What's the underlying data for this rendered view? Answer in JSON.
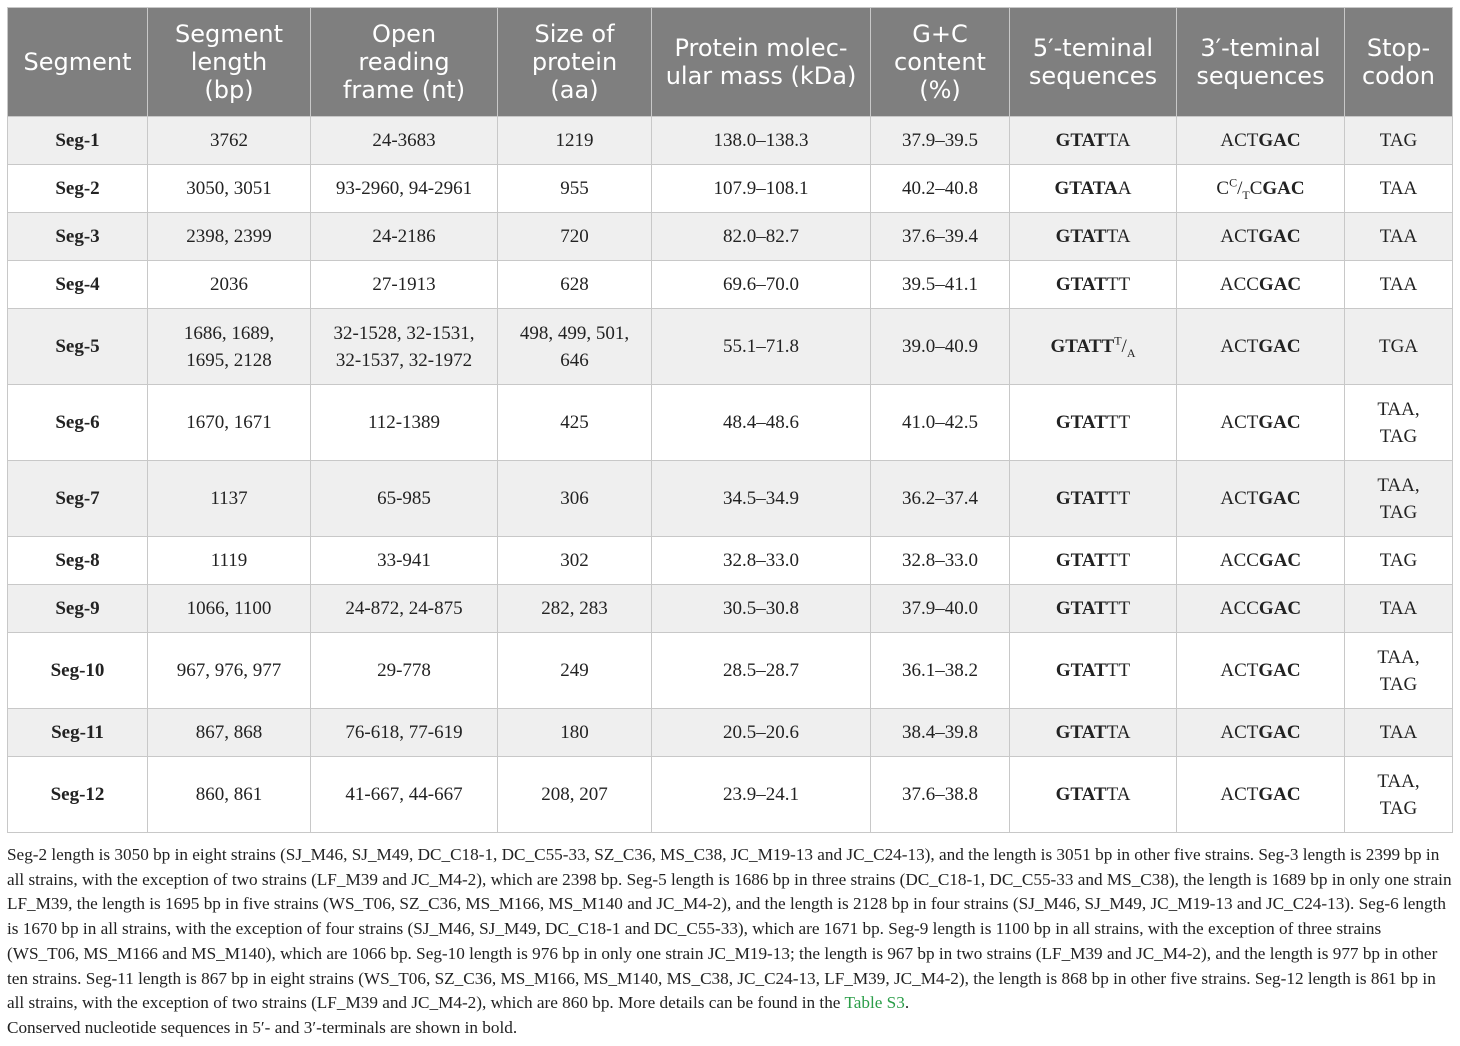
{
  "table": {
    "headers": [
      "Segment",
      "Segment length (bp)",
      "Open reading frame (nt)",
      "Size of protein (aa)",
      "Protein molecular mass (kDa)",
      "G+C content (%)",
      "5′-teminal sequences",
      "3′-teminal sequences",
      "Stop-codon"
    ],
    "header_lines": [
      [
        "Segment"
      ],
      [
        "Segment",
        "length",
        "(bp)"
      ],
      [
        "Open",
        "reading",
        "frame (nt)"
      ],
      [
        "Size of",
        "protein",
        "(aa)"
      ],
      [
        "Protein molec-",
        "ular mass (kDa)"
      ],
      [
        "G+C",
        "content",
        "(%)"
      ],
      [
        "5′-teminal",
        "sequences"
      ],
      [
        "3′-teminal",
        "sequences"
      ],
      [
        "Stop-",
        "codon"
      ]
    ],
    "rows": [
      {
        "segment": "Seg-1",
        "length": [
          "3762"
        ],
        "orf": [
          "24-3683"
        ],
        "protein": [
          "1219"
        ],
        "mass": "138.0–138.3",
        "gc": "37.9–39.5",
        "five_bold": "GTAT",
        "five_rest": "TA",
        "five_sup": "",
        "five_sub": "",
        "three_pre": "ACT",
        "three_sup": "",
        "three_sub": "",
        "three_mid": "",
        "three_bold": "GAC",
        "stop": [
          "TAG"
        ]
      },
      {
        "segment": "Seg-2",
        "length": [
          "3050, 3051"
        ],
        "orf": [
          "93-2960, 94-2961"
        ],
        "protein": [
          "955"
        ],
        "mass": "107.9–108.1",
        "gc": "40.2–40.8",
        "five_bold": "GTATA",
        "five_rest": "A",
        "five_sup": "",
        "five_sub": "",
        "three_pre": "C",
        "three_sup": "C",
        "three_sub": "T",
        "three_mid": "C",
        "three_bold": "GAC",
        "stop": [
          "TAA"
        ]
      },
      {
        "segment": "Seg-3",
        "length": [
          "2398, 2399"
        ],
        "orf": [
          "24-2186"
        ],
        "protein": [
          "720"
        ],
        "mass": "82.0–82.7",
        "gc": "37.6–39.4",
        "five_bold": "GTAT",
        "five_rest": "TA",
        "five_sup": "",
        "five_sub": "",
        "three_pre": "ACT",
        "three_sup": "",
        "three_sub": "",
        "three_mid": "",
        "three_bold": "GAC",
        "stop": [
          "TAA"
        ]
      },
      {
        "segment": "Seg-4",
        "length": [
          "2036"
        ],
        "orf": [
          "27-1913"
        ],
        "protein": [
          "628"
        ],
        "mass": "69.6–70.0",
        "gc": "39.5–41.1",
        "five_bold": "GTAT",
        "five_rest": "TT",
        "five_sup": "",
        "five_sub": "",
        "three_pre": "ACC",
        "three_sup": "",
        "three_sub": "",
        "three_mid": "",
        "three_bold": "GAC",
        "stop": [
          "TAA"
        ]
      },
      {
        "segment": "Seg-5",
        "length": [
          "1686, 1689,",
          "1695, 2128"
        ],
        "orf": [
          "32-1528, 32-1531,",
          "32-1537, 32-1972"
        ],
        "protein": [
          "498, 499, 501,",
          "646"
        ],
        "mass": "55.1–71.8",
        "gc": "39.0–40.9",
        "five_bold": "GTATT",
        "five_rest": "",
        "five_sup": "T",
        "five_sub": "A",
        "three_pre": "ACT",
        "three_sup": "",
        "three_sub": "",
        "three_mid": "",
        "three_bold": "GAC",
        "stop": [
          "TGA"
        ]
      },
      {
        "segment": "Seg-6",
        "length": [
          "1670, 1671"
        ],
        "orf": [
          "112-1389"
        ],
        "protein": [
          "425"
        ],
        "mass": "48.4–48.6",
        "gc": "41.0–42.5",
        "five_bold": "GTAT",
        "five_rest": "TT",
        "five_sup": "",
        "five_sub": "",
        "three_pre": "ACT",
        "three_sup": "",
        "three_sub": "",
        "three_mid": "",
        "three_bold": "GAC",
        "stop": [
          "TAA,",
          "TAG"
        ]
      },
      {
        "segment": "Seg-7",
        "length": [
          "1137"
        ],
        "orf": [
          "65-985"
        ],
        "protein": [
          "306"
        ],
        "mass": "34.5–34.9",
        "gc": "36.2–37.4",
        "five_bold": "GTAT",
        "five_rest": "TT",
        "five_sup": "",
        "five_sub": "",
        "three_pre": "ACT",
        "three_sup": "",
        "three_sub": "",
        "three_mid": "",
        "three_bold": "GAC",
        "stop": [
          "TAA,",
          "TAG"
        ]
      },
      {
        "segment": "Seg-8",
        "length": [
          "1119"
        ],
        "orf": [
          "33-941"
        ],
        "protein": [
          "302"
        ],
        "mass": "32.8–33.0",
        "gc": "32.8–33.0",
        "five_bold": "GTAT",
        "five_rest": "TT",
        "five_sup": "",
        "five_sub": "",
        "three_pre": "ACC",
        "three_sup": "",
        "three_sub": "",
        "three_mid": "",
        "three_bold": "GAC",
        "stop": [
          "TAG"
        ]
      },
      {
        "segment": "Seg-9",
        "length": [
          "1066, 1100"
        ],
        "orf": [
          "24-872, 24-875"
        ],
        "protein": [
          "282, 283"
        ],
        "mass": "30.5–30.8",
        "gc": "37.9–40.0",
        "five_bold": "GTAT",
        "five_rest": "TT",
        "five_sup": "",
        "five_sub": "",
        "three_pre": "ACC",
        "three_sup": "",
        "three_sub": "",
        "three_mid": "",
        "three_bold": "GAC",
        "stop": [
          "TAA"
        ]
      },
      {
        "segment": "Seg-10",
        "length": [
          "967, 976, 977"
        ],
        "orf": [
          "29-778"
        ],
        "protein": [
          "249"
        ],
        "mass": "28.5–28.7",
        "gc": "36.1–38.2",
        "five_bold": "GTAT",
        "five_rest": "TT",
        "five_sup": "",
        "five_sub": "",
        "three_pre": "ACT",
        "three_sup": "",
        "three_sub": "",
        "three_mid": "",
        "three_bold": "GAC",
        "stop": [
          "TAA,",
          "TAG"
        ]
      },
      {
        "segment": "Seg-11",
        "length": [
          "867, 868"
        ],
        "orf": [
          "76-618, 77-619"
        ],
        "protein": [
          "180"
        ],
        "mass": "20.5–20.6",
        "gc": "38.4–39.8",
        "five_bold": "GTAT",
        "five_rest": "TA",
        "five_sup": "",
        "five_sub": "",
        "three_pre": "ACT",
        "three_sup": "",
        "three_sub": "",
        "three_mid": "",
        "three_bold": "GAC",
        "stop": [
          "TAA"
        ]
      },
      {
        "segment": "Seg-12",
        "length": [
          "860, 861"
        ],
        "orf": [
          "41-667, 44-667"
        ],
        "protein": [
          "208, 207"
        ],
        "mass": "23.9–24.1",
        "gc": "37.6–38.8",
        "five_bold": "GTAT",
        "five_rest": "TA",
        "five_sup": "",
        "five_sub": "",
        "three_pre": "ACT",
        "three_sup": "",
        "three_sub": "",
        "three_mid": "",
        "three_bold": "GAC",
        "stop": [
          "TAA,",
          "TAG"
        ]
      }
    ]
  },
  "notes": {
    "footnote": "Seg-2 length is 3050 bp in eight strains (SJ_M46, SJ_M49, DC_C18-1, DC_C55-33, SZ_C36, MS_C38, JC_M19-13 and JC_C24-13), and the length is 3051 bp in other five strains. Seg-3 length is 2399 bp in all strains, with the exception of two strains (LF_M39 and JC_M4-2), which are 2398 bp. Seg-5 length is 1686 bp in three strains (DC_C18-1, DC_C55-33 and MS_C38), the length is 1689 bp in only one strain LF_M39, the length is 1695 bp in five strains (WS_T06, SZ_C36, MS_M166, MS_M140 and JC_M4-2), and the length is 2128 bp in four strains (SJ_M46, SJ_M49, JC_M19-13 and JC_C24-13). Seg-6 length is 1670 bp in all strains, with the exception of four strains (SJ_M46, SJ_M49, DC_C18-1 and DC_C55-33), which are 1671 bp. Seg-9 length is 1100 bp in all strains, with the exception of three strains (WS_T06, MS_M166 and MS_M140), which are 1066 bp. Seg-10 length is 976 bp in only one strain JC_M19-13; the length is 967 bp in two strains (LF_M39 and JC_M4-2), and the length is 977 bp in other ten strains. Seg-11 length is 867 bp in eight strains (WS_T06, SZ_C36, MS_M166, MS_M140, MS_C38, JC_C24-13, LF_M39, JC_M4-2), the length is 868 bp in other five strains. Seg-12 length is 861 bp in all strains, with the exception of two strains (LF_M39 and JC_M4-2), which are 860 bp. More details can be found in the",
    "link_text": "Table S3",
    "footnote_end": ".",
    "bold_note": "Conserved nucleotide sequences in 5′- and 3′-terminals are shown in bold."
  },
  "colors": {
    "header_bg": "#7f7f7f",
    "header_text": "#ffffff",
    "row_shaded": "#efefef",
    "link": "#2a9d48"
  }
}
